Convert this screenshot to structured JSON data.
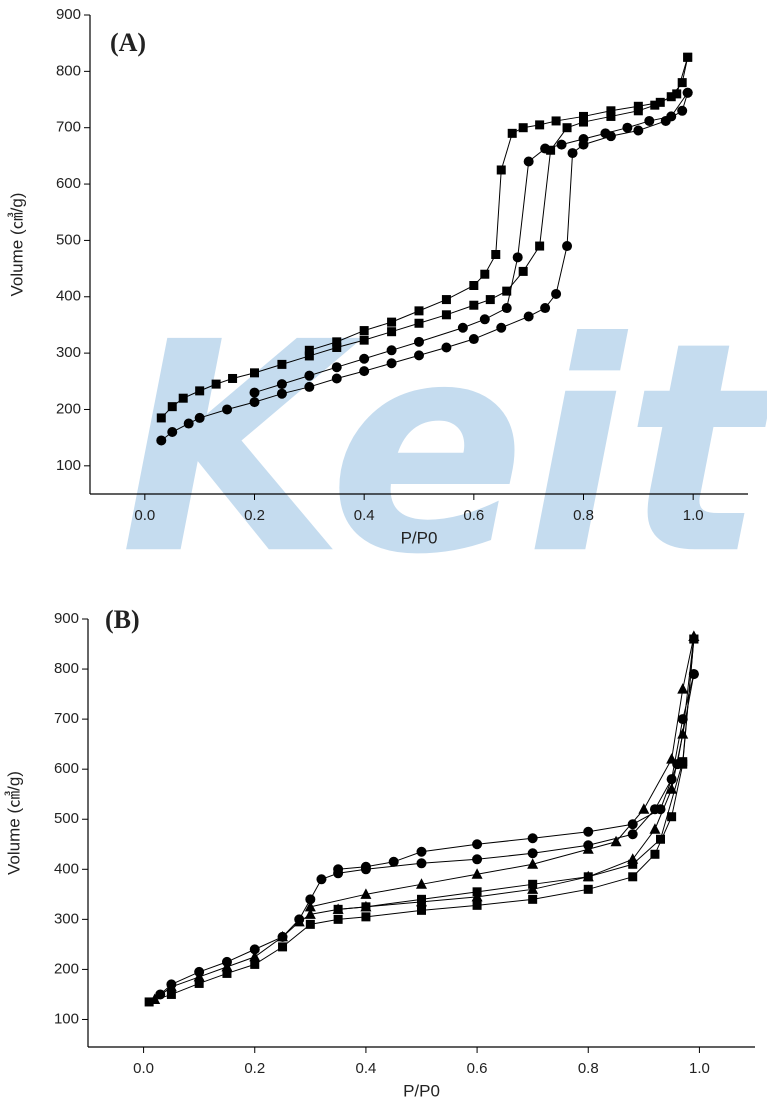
{
  "watermark": "Keit",
  "chart_data": [
    {
      "type": "line",
      "title": "(A)",
      "x_label": "P/P0",
      "y_label": "Volume (㎤/g)",
      "xlim": [
        -0.1,
        1.1
      ],
      "ylim": [
        50,
        900
      ],
      "xticks": [
        {
          "value": 0,
          "label": "0.0"
        },
        0.2,
        0.4,
        0.6,
        0.8,
        {
          "value": 1,
          "label": "1.0"
        }
      ],
      "yticks": [
        100,
        200,
        300,
        400,
        500,
        600,
        700,
        800,
        900
      ],
      "series": [
        {
          "marker": "square",
          "color": "#000000",
          "x": [
            0.03,
            0.05,
            0.07,
            0.1,
            0.13,
            0.16,
            0.2,
            0.25,
            0.3,
            0.35,
            0.4,
            0.45,
            0.5,
            0.55,
            0.6,
            0.63,
            0.66,
            0.69,
            0.72,
            0.74,
            0.77,
            0.8,
            0.85,
            0.9,
            0.93,
            0.96,
            0.98,
            0.99
          ],
          "values": [
            185,
            205,
            220,
            233,
            245,
            255,
            265,
            280,
            295,
            310,
            323,
            338,
            353,
            368,
            385,
            395,
            410,
            445,
            490,
            660,
            700,
            710,
            720,
            730,
            740,
            755,
            780,
            825
          ]
        },
        {
          "marker": "square",
          "color": "#000000",
          "x": [
            0.99,
            0.97,
            0.94,
            0.9,
            0.85,
            0.8,
            0.75,
            0.72,
            0.69,
            0.67,
            0.65,
            0.64,
            0.62,
            0.6,
            0.55,
            0.5,
            0.45,
            0.4,
            0.35,
            0.3
          ],
          "values": [
            825,
            760,
            745,
            738,
            730,
            720,
            712,
            705,
            700,
            690,
            625,
            475,
            440,
            420,
            395,
            375,
            355,
            340,
            320,
            305
          ]
        },
        {
          "marker": "circle",
          "color": "#000000",
          "x": [
            0.03,
            0.05,
            0.08,
            0.1,
            0.15,
            0.2,
            0.25,
            0.3,
            0.35,
            0.4,
            0.45,
            0.5,
            0.55,
            0.6,
            0.65,
            0.7,
            0.73,
            0.75,
            0.77,
            0.78,
            0.8,
            0.85,
            0.9,
            0.95,
            0.98,
            0.99
          ],
          "values": [
            145,
            160,
            175,
            185,
            200,
            213,
            228,
            240,
            255,
            268,
            282,
            296,
            310,
            325,
            345,
            365,
            380,
            405,
            490,
            655,
            670,
            685,
            695,
            712,
            730,
            762
          ]
        },
        {
          "marker": "circle",
          "color": "#000000",
          "x": [
            0.99,
            0.96,
            0.92,
            0.88,
            0.84,
            0.8,
            0.76,
            0.73,
            0.7,
            0.68,
            0.66,
            0.62,
            0.58,
            0.5,
            0.45,
            0.4,
            0.35,
            0.3,
            0.25,
            0.2
          ],
          "values": [
            762,
            720,
            712,
            700,
            690,
            680,
            670,
            663,
            640,
            470,
            380,
            360,
            345,
            320,
            305,
            290,
            275,
            260,
            245,
            230
          ]
        }
      ]
    },
    {
      "type": "line",
      "title": "(B)",
      "x_label": "P/P0",
      "y_label": "Volume (㎤/g)",
      "xlim": [
        -0.1,
        1.1
      ],
      "ylim": [
        45,
        900
      ],
      "xticks": [
        {
          "value": 0,
          "label": "0.0"
        },
        0.2,
        0.4,
        0.6,
        0.8,
        {
          "value": 1,
          "label": "1.0"
        }
      ],
      "yticks": [
        100,
        200,
        300,
        400,
        500,
        600,
        700,
        800,
        900
      ],
      "series": [
        {
          "marker": "circle",
          "color": "#000000",
          "x": [
            0.03,
            0.05,
            0.1,
            0.15,
            0.2,
            0.25,
            0.28,
            0.3,
            0.32,
            0.35,
            0.4,
            0.5,
            0.6,
            0.7,
            0.8,
            0.88,
            0.92,
            0.95,
            0.97,
            0.99
          ],
          "values": [
            150,
            170,
            195,
            215,
            240,
            265,
            300,
            340,
            380,
            392,
            400,
            412,
            420,
            432,
            448,
            470,
            520,
            580,
            700,
            790
          ]
        },
        {
          "marker": "circle",
          "color": "#000000",
          "x": [
            0.99,
            0.96,
            0.93,
            0.88,
            0.8,
            0.7,
            0.6,
            0.5,
            0.45,
            0.4,
            0.35
          ],
          "values": [
            790,
            610,
            520,
            490,
            475,
            462,
            450,
            435,
            415,
            405,
            400
          ]
        },
        {
          "marker": "triangle",
          "color": "#000000",
          "x": [
            0.02,
            0.05,
            0.1,
            0.15,
            0.2,
            0.25,
            0.28,
            0.3,
            0.35,
            0.4,
            0.5,
            0.6,
            0.7,
            0.8,
            0.88,
            0.92,
            0.95,
            0.97,
            0.99
          ],
          "values": [
            140,
            165,
            185,
            205,
            225,
            265,
            295,
            310,
            320,
            325,
            335,
            345,
            360,
            385,
            420,
            480,
            560,
            670,
            865
          ]
        },
        {
          "marker": "triangle",
          "color": "#000000",
          "x": [
            0.99,
            0.97,
            0.95,
            0.9,
            0.85,
            0.8,
            0.7,
            0.6,
            0.5,
            0.4,
            0.3
          ],
          "values": [
            865,
            760,
            620,
            520,
            455,
            440,
            410,
            390,
            370,
            350,
            325
          ]
        },
        {
          "marker": "square",
          "color": "#000000",
          "x": [
            0.01,
            0.05,
            0.1,
            0.15,
            0.2,
            0.25,
            0.3,
            0.35,
            0.4,
            0.5,
            0.6,
            0.7,
            0.8,
            0.88,
            0.92,
            0.95,
            0.97,
            0.99
          ],
          "values": [
            135,
            150,
            172,
            192,
            210,
            245,
            290,
            300,
            305,
            318,
            328,
            340,
            360,
            385,
            430,
            505,
            610,
            860
          ]
        },
        {
          "marker": "square",
          "color": "#000000",
          "x": [
            0.99,
            0.97,
            0.93,
            0.88,
            0.8,
            0.7,
            0.6,
            0.5,
            0.4,
            0.35
          ],
          "values": [
            860,
            615,
            460,
            410,
            385,
            370,
            355,
            340,
            325,
            320
          ]
        }
      ]
    }
  ]
}
